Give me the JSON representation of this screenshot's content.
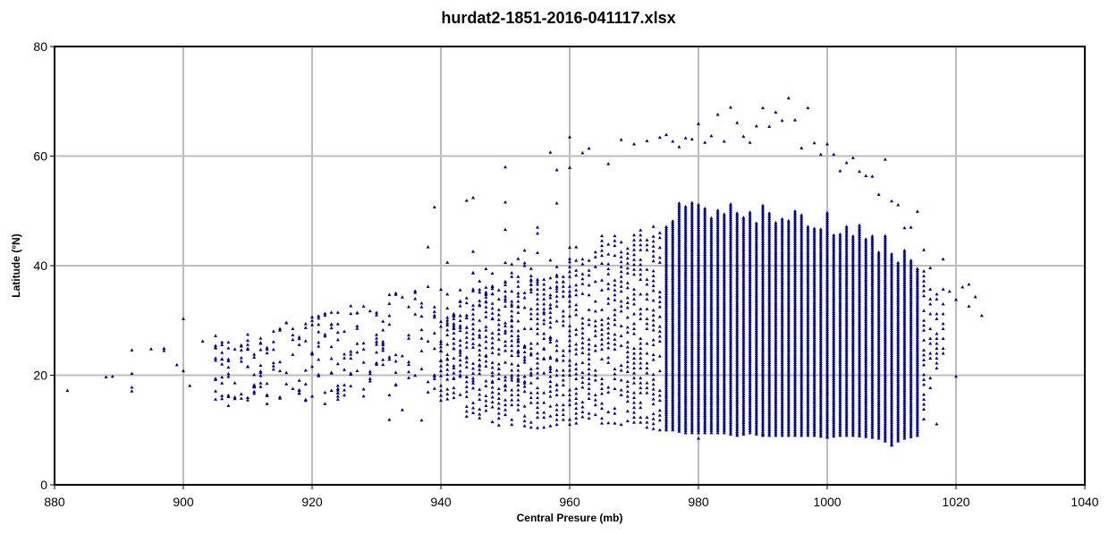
{
  "chart_data": {
    "type": "scatter",
    "title": "hurdat2-1851-2016-041117.xlsx",
    "xlabel": "Central Presure (mb)",
    "ylabel": "Latitude (°N)",
    "xlim": [
      880,
      1040
    ],
    "ylim": [
      0,
      80
    ],
    "xticks": [
      880,
      900,
      920,
      940,
      960,
      980,
      1000,
      1020,
      1040
    ],
    "yticks": [
      0,
      20,
      40,
      60,
      80
    ],
    "grid": true,
    "marker_color": "#000080",
    "marker_shape": "triangle",
    "series": [
      {
        "points": [
          [
            882,
            17.2
          ],
          [
            888,
            19.7
          ],
          [
            889,
            19.8
          ],
          [
            892,
            24.6
          ],
          [
            892,
            20.3
          ],
          [
            892,
            17.8
          ],
          [
            892,
            17.1
          ],
          [
            895,
            24.8
          ],
          [
            897,
            24.9
          ],
          [
            897,
            24.5
          ],
          [
            899,
            21.9
          ],
          [
            900,
            30.3
          ],
          [
            900,
            20.8
          ],
          [
            901,
            18.1
          ],
          [
            903,
            26.2
          ],
          [
            905,
            27.2
          ],
          [
            905,
            25.4
          ],
          [
            905,
            19.4
          ],
          [
            905,
            17.1
          ],
          [
            908,
            18.6
          ],
          [
            909,
            25.3
          ],
          [
            909,
            24.6
          ],
          [
            910,
            25.6
          ],
          [
            910,
            24.9
          ],
          [
            912,
            21.8
          ],
          [
            913,
            14.8
          ],
          [
            914,
            24.7
          ],
          [
            915,
            28.2
          ],
          [
            916,
            18.4
          ],
          [
            917,
            26.5
          ],
          [
            918,
            16.8
          ],
          [
            920,
            29.2
          ],
          [
            920,
            21.6
          ],
          [
            922,
            14.8
          ],
          [
            925,
            17.3
          ],
          [
            928,
            32.6
          ],
          [
            930,
            26.1
          ],
          [
            932,
            11.9
          ],
          [
            934,
            13.7
          ],
          [
            937,
            11.8
          ],
          [
            938,
            43.4
          ],
          [
            939,
            50.7
          ],
          [
            941,
            40.6
          ],
          [
            944,
            51.9
          ],
          [
            945,
            52.4
          ],
          [
            945,
            42.6
          ],
          [
            946,
            12.2
          ],
          [
            949,
            10.9
          ],
          [
            950,
            58.0
          ],
          [
            950,
            51.6
          ],
          [
            950,
            46.6
          ],
          [
            951,
            38.7
          ],
          [
            953,
            42.8
          ],
          [
            955,
            47.0
          ],
          [
            955,
            45.9
          ],
          [
            955,
            10.4
          ],
          [
            957,
            60.7
          ],
          [
            958,
            57.5
          ],
          [
            958,
            51.4
          ],
          [
            960,
            63.5
          ],
          [
            960,
            57.9
          ],
          [
            961,
            43.4
          ],
          [
            962,
            60.6
          ],
          [
            963,
            61.4
          ],
          [
            965,
            40.4
          ],
          [
            966,
            58.6
          ],
          [
            966,
            11.3
          ],
          [
            968,
            63.0
          ],
          [
            970,
            62.2
          ],
          [
            972,
            62.8
          ],
          [
            974,
            63.4
          ],
          [
            975,
            63.9
          ],
          [
            976,
            62.7
          ],
          [
            977,
            61.7
          ],
          [
            978,
            63.3
          ],
          [
            979,
            63.1
          ],
          [
            980,
            65.9
          ],
          [
            980,
            8.5
          ],
          [
            981,
            62.5
          ],
          [
            982,
            63.7
          ],
          [
            983,
            67.6
          ],
          [
            984,
            62.7
          ],
          [
            985,
            68.9
          ],
          [
            986,
            66.1
          ],
          [
            987,
            63.6
          ],
          [
            988,
            62.5
          ],
          [
            989,
            65.5
          ],
          [
            990,
            68.8
          ],
          [
            990,
            9.2
          ],
          [
            991,
            65.4
          ],
          [
            992,
            68.0
          ],
          [
            993,
            66.5
          ],
          [
            994,
            70.6
          ],
          [
            995,
            66.6
          ],
          [
            996,
            61.5
          ],
          [
            997,
            68.8
          ],
          [
            998,
            62.4
          ],
          [
            999,
            60.3
          ],
          [
            1000,
            62.2
          ],
          [
            1000,
            8.7
          ],
          [
            1001,
            60.3
          ],
          [
            1002,
            57.3
          ],
          [
            1003,
            58.8
          ],
          [
            1004,
            59.7
          ],
          [
            1005,
            57.2
          ],
          [
            1006,
            56.4
          ],
          [
            1007,
            56.3
          ],
          [
            1008,
            53.0
          ],
          [
            1009,
            59.4
          ],
          [
            1010,
            51.8
          ],
          [
            1010,
            7.2
          ],
          [
            1011,
            51.1
          ],
          [
            1012,
            46.9
          ],
          [
            1013,
            47.0
          ],
          [
            1014,
            49.9
          ],
          [
            1015,
            42.9
          ],
          [
            1016,
            39.6
          ],
          [
            1017,
            11.1
          ],
          [
            1018,
            41.2
          ],
          [
            1019,
            35.3
          ],
          [
            1020,
            33.8
          ],
          [
            1020,
            19.8
          ],
          [
            1021,
            36.1
          ],
          [
            1022,
            36.6
          ],
          [
            1022,
            32.6
          ],
          [
            1023,
            34.3
          ],
          [
            1024,
            30.9
          ]
        ]
      },
      {
        "columns_note": "dense vertical runs of points at each integer pressure value (min, max latitude)",
        "columns": [
          [
            940,
            14.5,
            33.0
          ],
          [
            942,
            15.0,
            35.0
          ],
          [
            944,
            12.5,
            36.0
          ],
          [
            946,
            12.0,
            37.0
          ],
          [
            948,
            11.5,
            38.0
          ],
          [
            950,
            11.0,
            41.0
          ],
          [
            952,
            11.0,
            40.0
          ],
          [
            954,
            10.5,
            41.0
          ],
          [
            956,
            10.5,
            42.0
          ],
          [
            958,
            11.0,
            41.5
          ],
          [
            960,
            11.0,
            44.0
          ],
          [
            962,
            11.5,
            45.0
          ],
          [
            964,
            11.0,
            46.0
          ],
          [
            966,
            11.5,
            47.0
          ],
          [
            968,
            11.0,
            48.0
          ],
          [
            970,
            10.5,
            50.0
          ],
          [
            972,
            10.5,
            49.0
          ],
          [
            974,
            10.0,
            50.0
          ],
          [
            976,
            10.0,
            51.0
          ],
          [
            978,
            9.5,
            52.0
          ],
          [
            980,
            9.5,
            55.0
          ],
          [
            982,
            9.5,
            52.0
          ],
          [
            984,
            9.5,
            51.0
          ],
          [
            986,
            9.0,
            52.0
          ],
          [
            988,
            9.5,
            51.0
          ],
          [
            990,
            9.0,
            52.0
          ],
          [
            992,
            9.0,
            50.0
          ],
          [
            994,
            9.0,
            51.0
          ],
          [
            996,
            9.0,
            50.0
          ],
          [
            998,
            9.0,
            49.0
          ],
          [
            1000,
            8.7,
            50.0
          ],
          [
            1002,
            9.0,
            49.0
          ],
          [
            1004,
            9.0,
            48.0
          ],
          [
            1006,
            8.8,
            47.0
          ],
          [
            1008,
            8.5,
            46.0
          ],
          [
            1010,
            7.5,
            45.0
          ],
          [
            1012,
            8.5,
            44.0
          ],
          [
            1014,
            9.0,
            42.0
          ],
          [
            1016,
            15.0,
            38.0
          ],
          [
            1018,
            24.0,
            37.0
          ]
        ]
      }
    ]
  }
}
